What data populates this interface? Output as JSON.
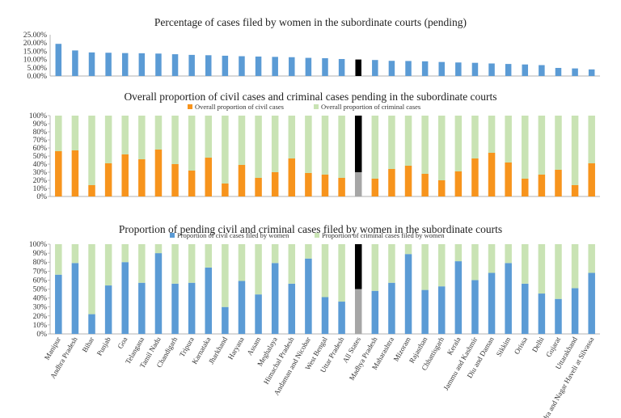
{
  "chart_data": [
    {
      "type": "bar",
      "title": "Percentage of cases filed by women in the subordinate courts (pending)",
      "categories": [
        "Manipur",
        "Andhra Pradesh",
        "Bihar",
        "Punjab",
        "Goa",
        "Telangana",
        "Tamil Nadu",
        "Chandigarh",
        "Tripura",
        "Karnataka",
        "Jharkhand",
        "Haryana",
        "Assam",
        "Meghalaya",
        "Himachal Pradesh",
        "Andaman and Nicobar",
        "West Bengal",
        "Uttar Pradesh",
        "All States",
        "Madhya Pradesh",
        "Maharashtra",
        "Mizoram",
        "Rajasthan",
        "Chhattisgarh",
        "Kerala",
        "Jammu and Kashmir",
        "Diu and Daman",
        "Sikkim",
        "Orissa",
        "Delhi",
        "Gujarat",
        "Uttarakhand",
        "Dadra and Nagar Haveli at Silvassa"
      ],
      "values": [
        19.5,
        15.5,
        14.3,
        14.1,
        13.9,
        13.8,
        13.6,
        13.2,
        12.8,
        12.6,
        12.3,
        12.0,
        11.8,
        11.6,
        11.4,
        11.0,
        10.8,
        10.3,
        10.0,
        9.7,
        9.2,
        9.1,
        8.9,
        8.5,
        8.2,
        8.0,
        7.6,
        7.3,
        7.0,
        6.6,
        4.9,
        4.6,
        4.0
      ],
      "yticks": [
        "25.00%",
        "20.00%",
        "15.00%",
        "10.00%",
        "5.00%",
        "0.00%"
      ],
      "ylim": [
        0,
        25
      ],
      "colors": {
        "bar": "#5B9BD5",
        "highlight": "#000000"
      }
    },
    {
      "type": "bar",
      "stacked": true,
      "title": "Overall proportion of civil cases and criminal cases pending in the subordinate courts",
      "categories": [
        "Manipur",
        "Andhra Pradesh",
        "Bihar",
        "Punjab",
        "Goa",
        "Telangana",
        "Tamil Nadu",
        "Chandigarh",
        "Tripura",
        "Karnataka",
        "Jharkhand",
        "Haryana",
        "Assam",
        "Meghalaya",
        "Himachal Pradesh",
        "Andaman and Nicobar",
        "West Bengal",
        "Uttar Pradesh",
        "All States",
        "Madhya Pradesh",
        "Maharashtra",
        "Mizoram",
        "Rajasthan",
        "Chhattisgarh",
        "Kerala",
        "Jammu and Kashmir",
        "Diu and Daman",
        "Sikkim",
        "Orissa",
        "Delhi",
        "Gujarat",
        "Uttarakhand",
        "Dadra and Nagar Haveli at Silvassa"
      ],
      "series": [
        {
          "name": "Overall proportion of civil cases",
          "color": "#F7941D",
          "values": [
            56,
            57,
            14,
            41,
            52,
            46,
            58,
            40,
            32,
            48,
            16,
            39,
            23,
            30,
            47,
            29,
            27,
            23,
            30,
            22,
            34,
            38,
            28,
            20,
            31,
            47,
            54,
            42,
            22,
            27,
            33,
            14,
            41
          ]
        },
        {
          "name": "Overall proportion of criminal cases",
          "color": "#C9E3B4",
          "values": [
            44,
            43,
            86,
            59,
            48,
            54,
            42,
            60,
            68,
            52,
            84,
            61,
            77,
            70,
            53,
            71,
            73,
            77,
            70,
            78,
            66,
            62,
            72,
            80,
            69,
            53,
            46,
            58,
            78,
            73,
            67,
            86,
            59
          ]
        }
      ],
      "yticks": [
        "100%",
        "90%",
        "80%",
        "70%",
        "60%",
        "50%",
        "40%",
        "30%",
        "20%",
        "10%",
        "0%"
      ],
      "ylim": [
        0,
        100
      ],
      "highlight_colors": {
        "lower": "#A6A6A6",
        "upper": "#000000"
      }
    },
    {
      "type": "bar",
      "stacked": true,
      "title": "Proportion of pending civil and criminal cases filed by women in the subordinate courts",
      "categories": [
        "Manipur",
        "Andhra Pradesh",
        "Bihar",
        "Punjab",
        "Goa",
        "Telangana",
        "Tamil Nadu",
        "Chandigarh",
        "Tripura",
        "Karnataka",
        "Jharkhand",
        "Haryana",
        "Assam",
        "Meghalaya",
        "Himachal Pradesh",
        "Andaman and Nicobar",
        "West Bengal",
        "Uttar Pradesh",
        "All States",
        "Madhya Pradesh",
        "Maharashtra",
        "Mizoram",
        "Rajasthan",
        "Chhattisgarh",
        "Kerala",
        "Jammu and Kashmir",
        "Diu and Daman",
        "Sikkim",
        "Orissa",
        "Delhi",
        "Gujarat",
        "Uttarakhand",
        "Dadra and Nagar Haveli at Silvassa"
      ],
      "series": [
        {
          "name": "Proportion of civil cases filed by women",
          "color": "#5B9BD5",
          "values": [
            66,
            79,
            22,
            54,
            80,
            57,
            90,
            56,
            57,
            74,
            30,
            59,
            44,
            79,
            56,
            84,
            41,
            36,
            50,
            48,
            57,
            89,
            49,
            53,
            81,
            60,
            68,
            79,
            56,
            45,
            39,
            51,
            68
          ]
        },
        {
          "name": "Proportion of criminal cases filed by women",
          "color": "#C9E3B4",
          "values": [
            34,
            21,
            78,
            46,
            20,
            43,
            10,
            44,
            43,
            26,
            70,
            41,
            56,
            21,
            44,
            16,
            59,
            64,
            50,
            52,
            43,
            11,
            51,
            47,
            19,
            40,
            32,
            21,
            44,
            55,
            61,
            49,
            32
          ]
        }
      ],
      "yticks": [
        "100%",
        "90%",
        "80%",
        "70%",
        "60%",
        "50%",
        "40%",
        "30%",
        "20%",
        "10%",
        "0%"
      ],
      "ylim": [
        0,
        100
      ],
      "highlight_colors": {
        "lower": "#A6A6A6",
        "upper": "#000000"
      }
    }
  ]
}
